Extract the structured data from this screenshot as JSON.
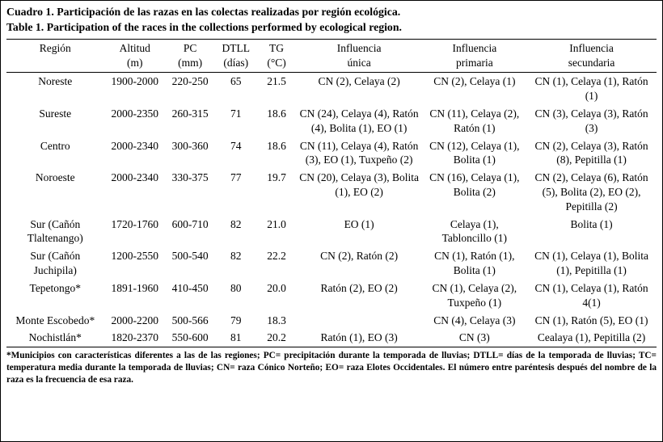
{
  "title_es": "Cuadro 1. Participación de las razas en las colectas realizadas por región ecológica.",
  "title_en": "Table 1. Participation of the races in the collections performed by ecological region.",
  "table": {
    "headers": [
      "Región",
      "Altitud\n(m)",
      "PC\n(mm)",
      "DTLL\n(días)",
      "TG\n(°C)",
      "Influencia\núnica",
      "Influencia\nprimaria",
      "Influencia\nsecundaria"
    ],
    "rows": [
      [
        "Noreste",
        "1900-2000",
        "220-250",
        "65",
        "21.5",
        "CN (2), Celaya (2)",
        "CN (2), Celaya (1)",
        "CN (1), Celaya (1), Ratón (1)"
      ],
      [
        "Sureste",
        "2000-2350",
        "260-315",
        "71",
        "18.6",
        "CN (24), Celaya (4), Ratón (4), Bolita (1), EO (1)",
        "CN (11), Celaya (2), Ratón (1)",
        "CN (3), Celaya (3), Ratón (3)"
      ],
      [
        "Centro",
        "2000-2340",
        "300-360",
        "74",
        "18.6",
        "CN (11), Celaya (4), Ratón (3), EO (1), Tuxpeño (2)",
        "CN (12), Celaya (1), Bolita (1)",
        "CN (2), Celaya (3), Ratón (8), Pepitilla (1)"
      ],
      [
        "Noroeste",
        "2000-2340",
        "330-375",
        "77",
        "19.7",
        "CN (20), Celaya (3), Bolita (1), EO (2)",
        "CN (16), Celaya (1), Bolita (2)",
        "CN (2), Celaya (6), Ratón (5), Bolita (2), EO (2), Pepitilla (2)"
      ],
      [
        "Sur (Cañón Tlaltenango)",
        "1720-1760",
        "600-710",
        "82",
        "21.0",
        "EO (1)",
        "Celaya (1), Tabloncillo (1)",
        "Bolita (1)"
      ],
      [
        "Sur (Cañón Juchipila)",
        "1200-2550",
        "500-540",
        "82",
        "22.2",
        "CN (2), Ratón (2)",
        "CN (1), Ratón (1), Bolita (1)",
        "CN (1), Celaya (1), Bolita (1), Pepitilla (1)"
      ],
      [
        "Tepetongo*",
        "1891-1960",
        "410-450",
        "80",
        "20.0",
        "Ratón (2), EO (2)",
        "CN (1), Celaya (2), Tuxpeño (1)",
        "CN (1), Celaya (1), Ratón 4(1)"
      ],
      [
        "Monte Escobedo*",
        "2000-2200",
        "500-566",
        "79",
        "18.3",
        "",
        "CN (4), Celaya (3)",
        "CN (1), Ratón (5), EO (1)"
      ],
      [
        "Nochistlán*",
        "1820-2370",
        "550-600",
        "81",
        "20.2",
        "Ratón (1), EO (3)",
        "CN (3)",
        "Cealaya (1), Pepitilla (2)"
      ]
    ]
  },
  "footnote": "*Municipios con características diferentes a las de las regiones; PC= precipitación durante la temporada de lluvias; DTLL= días de la temporada de lluvias; TC= temperatura media durante la temporada de lluvias; CN= raza Cónico Norteño; EO= raza Elotes Occidentales. El número entre paréntesis después del nombre de la raza es la frecuencia de esa raza."
}
